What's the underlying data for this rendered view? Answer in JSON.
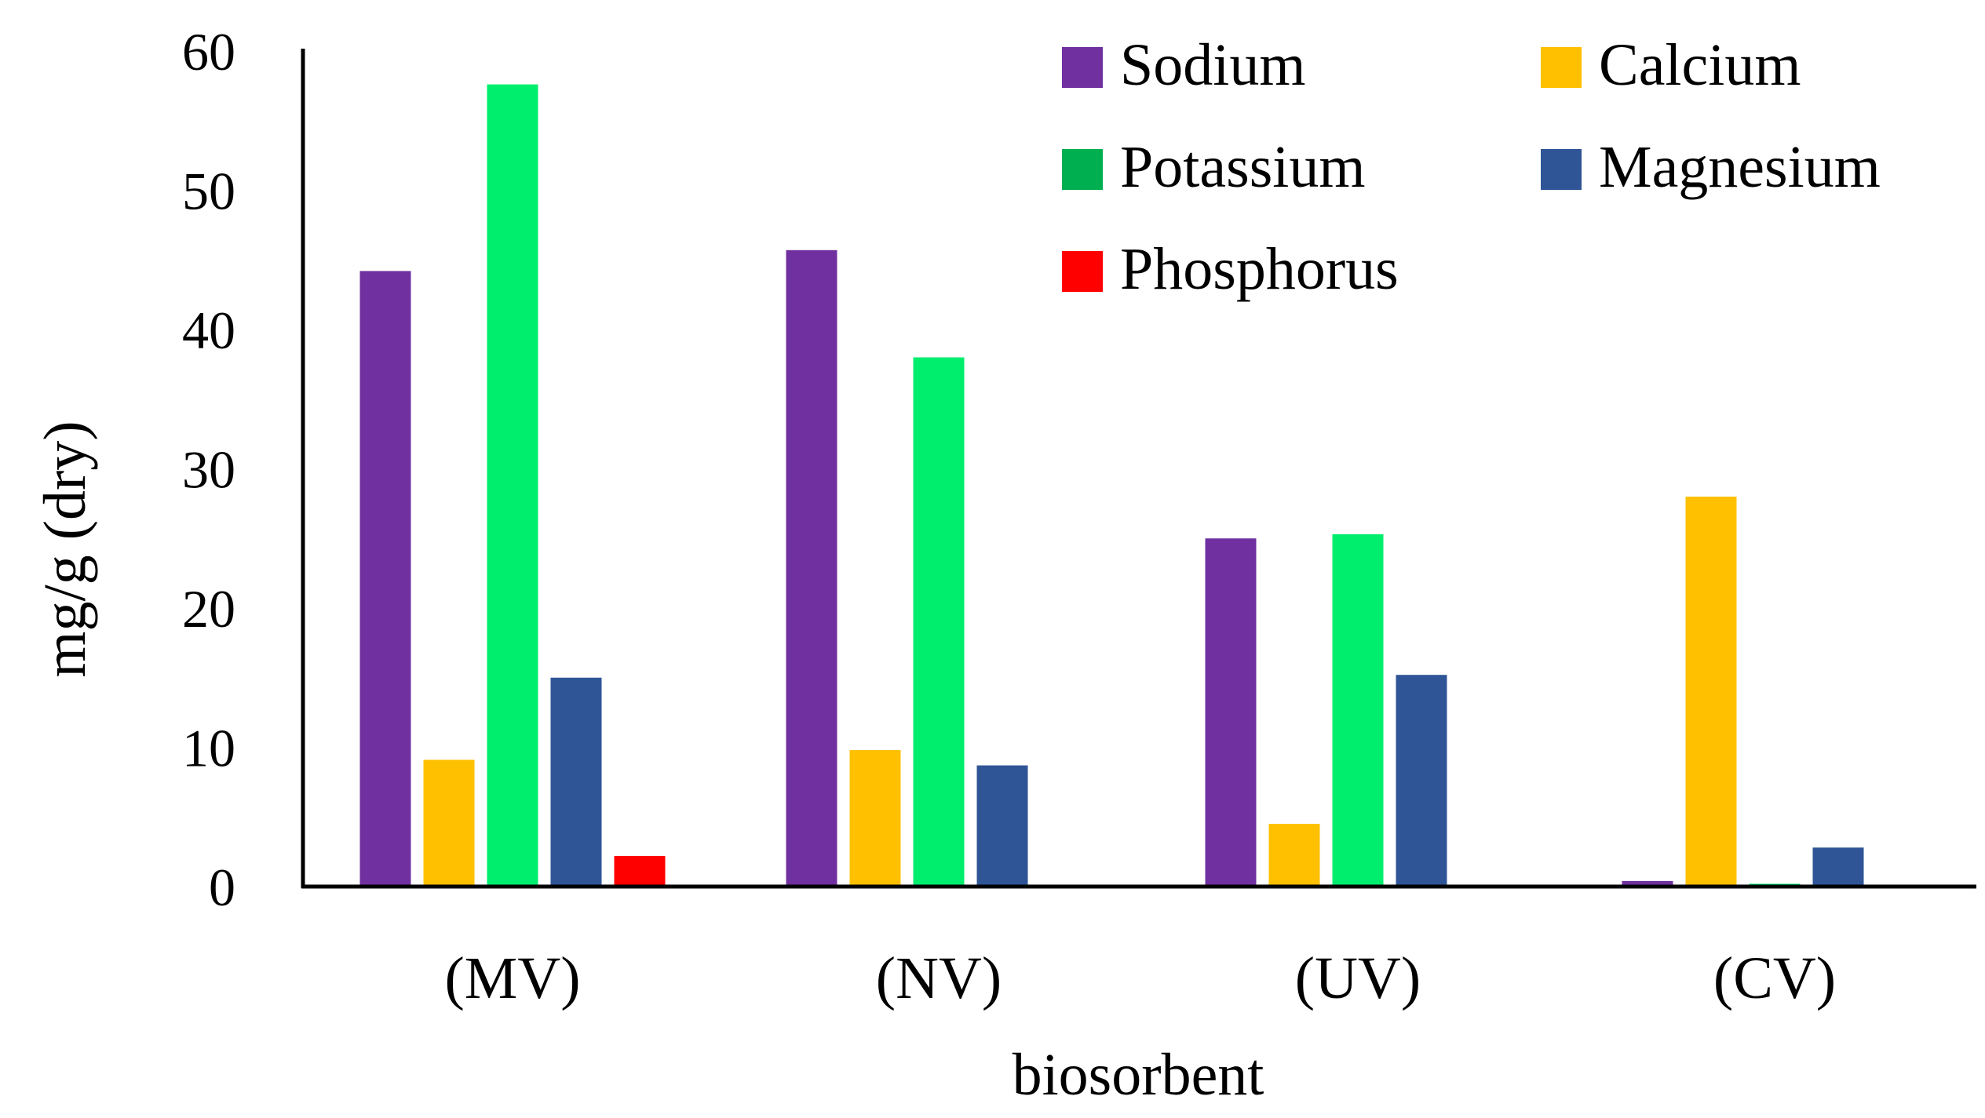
{
  "chart_data": {
    "type": "bar",
    "title": "",
    "xlabel": "biosorbent",
    "ylabel": "mg/g (dry)",
    "ylim": [
      0,
      60
    ],
    "yticks": [
      0,
      10,
      20,
      30,
      40,
      50,
      60
    ],
    "grid": false,
    "legend_position": "top-right",
    "categories": [
      "(MV)",
      "(NV)",
      "(UV)",
      "(CV)"
    ],
    "series": [
      {
        "name": "Sodium",
        "color": "#7030a0",
        "legend_color": "#7030a0",
        "values": [
          44.2,
          45.7,
          25.0,
          0.4
        ]
      },
      {
        "name": "Calcium",
        "color": "#ffc000",
        "legend_color": "#ffc000",
        "values": [
          9.1,
          9.8,
          4.5,
          28.0
        ]
      },
      {
        "name": "Potassium",
        "color": "#00ee6e",
        "legend_color": "#00b050",
        "values": [
          57.6,
          38.0,
          25.3,
          0.2
        ]
      },
      {
        "name": "Magnesium",
        "color": "#2f5597",
        "legend_color": "#2f5597",
        "values": [
          15.0,
          8.7,
          15.2,
          2.8
        ]
      },
      {
        "name": "Phosphorus",
        "color": "#ff0000",
        "legend_color": "#ff0000",
        "values": [
          2.2,
          0,
          0,
          0
        ]
      }
    ]
  }
}
